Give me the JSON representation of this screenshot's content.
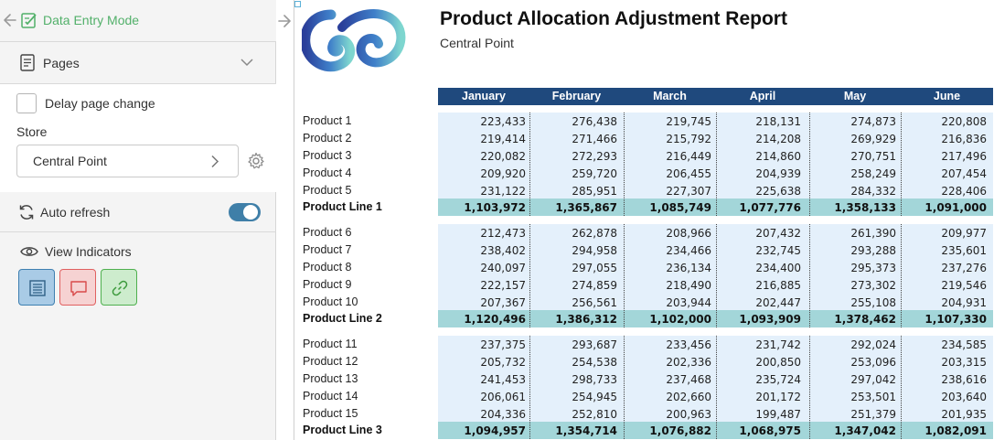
{
  "sidebar": {
    "mode_label": "Data Entry Mode",
    "pages_label": "Pages",
    "delay_label": "Delay page change",
    "store_label": "Store",
    "store_value": "Central Point",
    "auto_refresh_label": "Auto refresh",
    "auto_refresh_on": true,
    "view_indicators_label": "View Indicators",
    "colors": {
      "accent_green": "#52b06a",
      "toggle_on": "#3f7fa8"
    }
  },
  "report": {
    "title": "Product Allocation Adjustment Report",
    "subtitle": "Central Point",
    "months": [
      "January",
      "February",
      "March",
      "April",
      "May",
      "June"
    ],
    "groups": [
      {
        "rows": [
          {
            "name": "Product 1",
            "values": [
              "223,433",
              "276,438",
              "219,745",
              "218,131",
              "274,873",
              "220,808"
            ]
          },
          {
            "name": "Product 2",
            "values": [
              "219,414",
              "271,466",
              "215,792",
              "214,208",
              "269,929",
              "216,836"
            ]
          },
          {
            "name": "Product 3",
            "values": [
              "220,082",
              "272,293",
              "216,449",
              "214,860",
              "270,751",
              "217,496"
            ]
          },
          {
            "name": "Product 4",
            "values": [
              "209,920",
              "259,720",
              "206,455",
              "204,939",
              "258,249",
              "207,454"
            ]
          },
          {
            "name": "Product 5",
            "values": [
              "231,122",
              "285,951",
              "227,307",
              "225,638",
              "284,332",
              "228,406"
            ]
          }
        ],
        "total": {
          "name": "Product Line 1",
          "values": [
            "1,103,972",
            "1,365,867",
            "1,085,749",
            "1,077,776",
            "1,358,133",
            "1,091,000"
          ]
        }
      },
      {
        "rows": [
          {
            "name": "Product 6",
            "values": [
              "212,473",
              "262,878",
              "208,966",
              "207,432",
              "261,390",
              "209,977"
            ]
          },
          {
            "name": "Product 7",
            "values": [
              "238,402",
              "294,958",
              "234,466",
              "232,745",
              "293,288",
              "235,601"
            ]
          },
          {
            "name": "Product 8",
            "values": [
              "240,097",
              "297,055",
              "236,134",
              "234,400",
              "295,373",
              "237,276"
            ]
          },
          {
            "name": "Product 9",
            "values": [
              "222,157",
              "274,859",
              "218,490",
              "216,885",
              "273,302",
              "219,546"
            ]
          },
          {
            "name": "Product 10",
            "values": [
              "207,367",
              "256,561",
              "203,944",
              "202,447",
              "255,108",
              "204,931"
            ]
          }
        ],
        "total": {
          "name": "Product Line 2",
          "values": [
            "1,120,496",
            "1,386,312",
            "1,102,000",
            "1,093,909",
            "1,378,462",
            "1,107,330"
          ]
        }
      },
      {
        "rows": [
          {
            "name": "Product 11",
            "values": [
              "237,375",
              "293,687",
              "233,456",
              "231,742",
              "292,024",
              "234,585"
            ]
          },
          {
            "name": "Product 12",
            "values": [
              "205,732",
              "254,538",
              "202,336",
              "200,850",
              "253,096",
              "203,315"
            ]
          },
          {
            "name": "Product 13",
            "values": [
              "241,453",
              "298,733",
              "237,468",
              "235,724",
              "297,042",
              "238,616"
            ]
          },
          {
            "name": "Product 14",
            "values": [
              "206,061",
              "254,945",
              "202,660",
              "201,172",
              "253,501",
              "203,640"
            ]
          },
          {
            "name": "Product 15",
            "values": [
              "204,336",
              "252,810",
              "200,963",
              "199,487",
              "251,379",
              "201,935"
            ]
          }
        ],
        "total": {
          "name": "Product Line 3",
          "values": [
            "1,094,957",
            "1,354,714",
            "1,076,882",
            "1,068,975",
            "1,347,042",
            "1,082,091"
          ]
        }
      }
    ],
    "colors": {
      "header_bg": "#1f497d",
      "cell_bg": "#e4f0fb",
      "total_bg": "#a3d6d9"
    }
  }
}
